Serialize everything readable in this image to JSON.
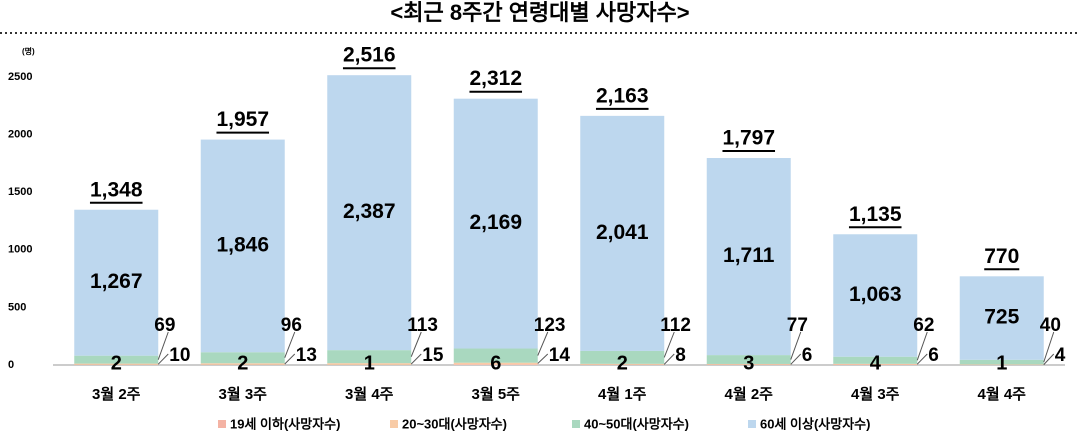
{
  "chart_data": {
    "type": "stacked_bar",
    "title": "<최근 8주간 연령대별 사망자수>",
    "y_unit": "(명)",
    "categories": [
      "3월 2주",
      "3월 3주",
      "3월 4주",
      "3월 5주",
      "4월 1주",
      "4월 2주",
      "4월 3주",
      "4월 4주"
    ],
    "series": [
      {
        "name": "19세 이하(사망자수)",
        "color": "#f4b3a4",
        "values": [
          2,
          2,
          1,
          6,
          2,
          3,
          4,
          1
        ]
      },
      {
        "name": "20~30대(사망자수)",
        "color": "#f8cba6",
        "values": [
          10,
          13,
          15,
          14,
          8,
          6,
          6,
          4
        ]
      },
      {
        "name": "40~50대(사망자수)",
        "color": "#a9d8bf",
        "values": [
          69,
          96,
          113,
          123,
          112,
          77,
          62,
          40
        ]
      },
      {
        "name": "60세 이상(사망자수)",
        "color": "#bdd7ee",
        "values": [
          1267,
          1846,
          2387,
          2169,
          2041,
          1711,
          1063,
          725
        ],
        "value_labels": [
          "1,267",
          "1,846",
          "2,387",
          "2,169",
          "2,041",
          "1,711",
          "1,063",
          "725"
        ]
      }
    ],
    "totals": {
      "values": [
        1348,
        1957,
        2516,
        2312,
        2163,
        1797,
        1135,
        770
      ],
      "value_labels": [
        "1,348",
        "1,957",
        "2,516",
        "2,312",
        "2,163",
        "1,797",
        "1,135",
        "770"
      ]
    },
    "ylim": [
      0,
      2700
    ],
    "yticks": [
      0,
      500,
      1000,
      1500,
      2000,
      2500
    ],
    "grid": false
  }
}
